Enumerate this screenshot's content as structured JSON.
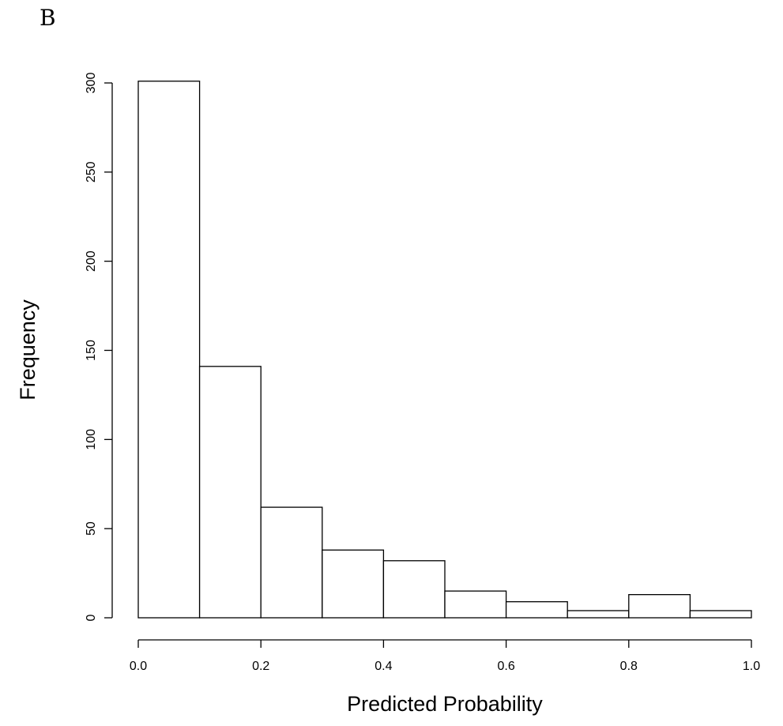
{
  "panel_label": "B",
  "chart_data": {
    "type": "bar",
    "title": "",
    "xlabel": "Predicted Probability",
    "ylabel": "Frequency",
    "bin_edges": [
      0.0,
      0.1,
      0.2,
      0.3,
      0.4,
      0.5,
      0.6,
      0.7,
      0.8,
      0.9,
      1.0
    ],
    "values": [
      301,
      141,
      62,
      38,
      32,
      15,
      9,
      4,
      13,
      4
    ],
    "xlim": [
      0,
      1
    ],
    "ylim": [
      0,
      300
    ],
    "x_ticks": [
      "0.0",
      "0.2",
      "0.4",
      "0.6",
      "0.8",
      "1.0"
    ],
    "y_ticks": [
      "0",
      "50",
      "100",
      "150",
      "200",
      "250",
      "300"
    ],
    "grid": false,
    "legend": "none",
    "colors": {
      "bar_fill": "#ffffff",
      "bar_stroke": "#000000"
    }
  }
}
